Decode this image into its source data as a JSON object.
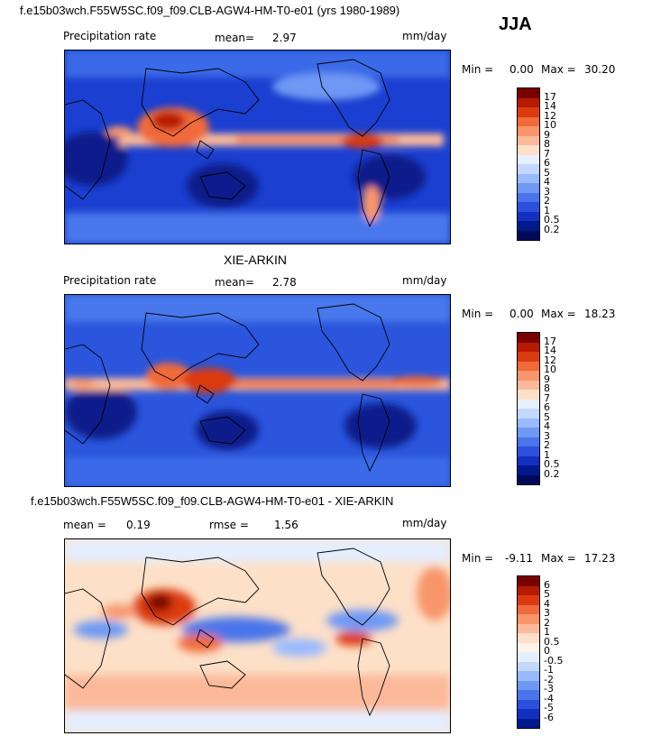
{
  "season": "JJA",
  "panels": [
    {
      "title": "f.e15b03wch.F55W5SC.f09_f09.CLB-AGW4-HM-T0-e01 (yrs 1980-1989)",
      "left_label": "Precipitation rate",
      "mean_label": "mean=",
      "mean_value": "2.97",
      "units": "mm/day",
      "min_label": "Min =",
      "min_value": "0.00",
      "max_label": "Max =",
      "max_value": "30.20",
      "levels": [
        "17",
        "14",
        "12",
        "10",
        "9",
        "8",
        "7",
        "6",
        "5",
        "4",
        "3",
        "2",
        "1",
        "0.5",
        "0.2"
      ]
    },
    {
      "title": "XIE-ARKIN",
      "left_label": "Precipitation rate",
      "mean_label": "mean=",
      "mean_value": "2.78",
      "units": "mm/day",
      "min_label": "Min =",
      "min_value": "0.00",
      "max_label": "Max =",
      "max_value": "18.23",
      "levels": [
        "17",
        "14",
        "12",
        "10",
        "9",
        "8",
        "7",
        "6",
        "5",
        "4",
        "3",
        "2",
        "1",
        "0.5",
        "0.2"
      ]
    },
    {
      "title": "f.e15b03wch.F55W5SC.f09_f09.CLB-AGW4-HM-T0-e01 - XIE-ARKIN",
      "mean_label": "mean =",
      "mean_value": "0.19",
      "rmse_label": "rmse =",
      "rmse_value": "1.56",
      "units": "mm/day",
      "min_label": "Min =",
      "min_value": "-9.11",
      "max_label": "Max =",
      "max_value": "17.23",
      "levels": [
        "6",
        "5",
        "4",
        "3",
        "2",
        "1",
        "0.5",
        "0",
        "-0.5",
        "-1",
        "-2",
        "-3",
        "-4",
        "-5",
        "-6"
      ]
    }
  ],
  "colors": {
    "precip": [
      "#7a0000",
      "#b81a00",
      "#dc3a10",
      "#f06a3a",
      "#f8956a",
      "#fbb99a",
      "#fde0c8",
      "#e6f0ff",
      "#c2d8ff",
      "#98baff",
      "#6e98f4",
      "#4a74ea",
      "#2c50dc",
      "#1430c0",
      "#001a8c",
      "#000a5a"
    ],
    "diff": [
      "#7a0000",
      "#b81a00",
      "#dc3a10",
      "#f06a3a",
      "#f8956a",
      "#fbb99a",
      "#fde0c8",
      "#fff2ea",
      "#e4eeff",
      "#c2d8ff",
      "#98baff",
      "#6e98f4",
      "#4a74ea",
      "#2c50dc",
      "#1430c0",
      "#001a8c"
    ]
  }
}
